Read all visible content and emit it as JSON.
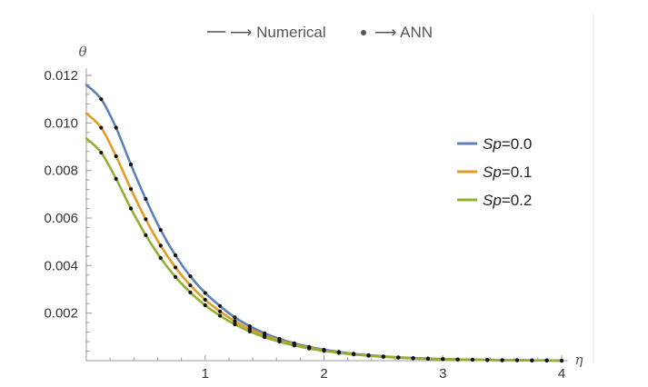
{
  "chart_data": {
    "type": "line",
    "title": "",
    "xlabel": "η",
    "ylabel": "θ",
    "xlim": [
      0,
      4.05
    ],
    "ylim": [
      0,
      0.0123
    ],
    "xticks": [
      1,
      2,
      3,
      4
    ],
    "xtick_labels": [
      "1",
      "2",
      "3",
      "4"
    ],
    "yticks": [
      0.002,
      0.004,
      0.006,
      0.008,
      0.01,
      0.012
    ],
    "ytick_labels": [
      "0.002",
      "0.004",
      "0.006",
      "0.008",
      "0.010",
      "0.012"
    ],
    "legend_position": "right",
    "top_legend": {
      "numerical_text": "⟶ Numerical",
      "ann_text": "⟶ ANN"
    },
    "series": [
      {
        "name": "Sp=0.0",
        "label_italic": "Sp",
        "label_value": "=0.0",
        "color": "#5e81b5",
        "x": [
          0,
          0.125,
          0.25,
          0.375,
          0.5,
          0.625,
          0.75,
          0.875,
          1.0,
          1.125,
          1.25,
          1.375,
          1.5,
          1.625,
          1.75,
          1.875,
          2.0,
          2.125,
          2.25,
          2.375,
          2.5,
          2.625,
          2.75,
          2.875,
          3.0,
          3.125,
          3.25,
          3.375,
          3.5,
          3.625,
          3.75,
          3.875,
          4.0
        ],
        "y": [
          0.0116,
          0.011,
          0.0098,
          0.00825,
          0.0068,
          0.0055,
          0.00443,
          0.00355,
          0.00285,
          0.0023,
          0.00182,
          0.00145,
          0.00115,
          0.00092,
          0.00073,
          0.00058,
          0.00046,
          0.00037,
          0.00029,
          0.00023,
          0.00018,
          0.00014,
          0.00011,
          9e-05,
          7e-05,
          5e-05,
          4e-05,
          3e-05,
          2e-05,
          2e-05,
          1e-05,
          1e-05,
          0.0
        ]
      },
      {
        "name": "Sp=0.1",
        "label_italic": "Sp",
        "label_value": "=0.1",
        "color": "#e19c24",
        "x": [
          0,
          0.125,
          0.25,
          0.375,
          0.5,
          0.625,
          0.75,
          0.875,
          1.0,
          1.125,
          1.25,
          1.375,
          1.5,
          1.625,
          1.75,
          1.875,
          2.0,
          2.125,
          2.25,
          2.375,
          2.5,
          2.625,
          2.75,
          2.875,
          3.0,
          3.125,
          3.25,
          3.375,
          3.5,
          3.625,
          3.75,
          3.875,
          4.0
        ],
        "y": [
          0.0104,
          0.0098,
          0.0086,
          0.00722,
          0.00595,
          0.00484,
          0.00392,
          0.00317,
          0.00256,
          0.00207,
          0.00166,
          0.00133,
          0.00106,
          0.00085,
          0.00068,
          0.00054,
          0.00043,
          0.00034,
          0.00027,
          0.00021,
          0.00017,
          0.00013,
          0.0001,
          8e-05,
          6e-05,
          5e-05,
          4e-05,
          3e-05,
          2e-05,
          2e-05,
          1e-05,
          1e-05,
          0.0
        ]
      },
      {
        "name": "Sp=0.2",
        "label_italic": "Sp",
        "label_value": "=0.2",
        "color": "#8fb032",
        "x": [
          0,
          0.125,
          0.25,
          0.375,
          0.5,
          0.625,
          0.75,
          0.875,
          1.0,
          1.125,
          1.25,
          1.375,
          1.5,
          1.625,
          1.75,
          1.875,
          2.0,
          2.125,
          2.25,
          2.375,
          2.5,
          2.625,
          2.75,
          2.875,
          3.0,
          3.125,
          3.25,
          3.375,
          3.5,
          3.625,
          3.75,
          3.875,
          4.0
        ],
        "y": [
          0.00935,
          0.00875,
          0.00765,
          0.0064,
          0.00528,
          0.00432,
          0.00352,
          0.00287,
          0.00233,
          0.00189,
          0.00153,
          0.00123,
          0.00099,
          0.0008,
          0.00064,
          0.00051,
          0.00041,
          0.00033,
          0.00026,
          0.00021,
          0.00016,
          0.00013,
          0.0001,
          8e-05,
          6e-05,
          5e-05,
          4e-05,
          3e-05,
          2e-05,
          2e-05,
          1e-05,
          1e-05,
          0.0
        ]
      }
    ],
    "ann_points": {
      "color": "#111111"
    }
  }
}
